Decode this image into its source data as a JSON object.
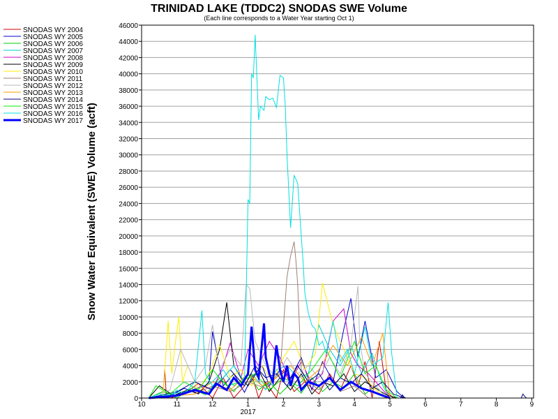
{
  "chart_data": {
    "type": "line",
    "title": "TRINIDAD LAKE (TDDC2) SNODAS SWE Volume",
    "subtitle": "(Each line corresponds to a Water Year starting Oct 1)",
    "xlabel": "",
    "ylabel": "Snow Water Equivalent (SWE) Volume (acft)",
    "ylim": [
      0,
      46000
    ],
    "xlim": [
      10,
      21.05
    ],
    "x_ticks": [
      "10",
      "11",
      "12",
      "1",
      "2",
      "3",
      "4",
      "5",
      "6",
      "7",
      "8",
      "9"
    ],
    "x_tick_positions": [
      10,
      11,
      12,
      13,
      14,
      15,
      16,
      17,
      18,
      19,
      20,
      21
    ],
    "x_year_label": "2017",
    "y_ticks": [
      0,
      2000,
      4000,
      6000,
      8000,
      10000,
      12000,
      14000,
      16000,
      18000,
      20000,
      22000,
      24000,
      26000,
      28000,
      30000,
      32000,
      34000,
      36000,
      38000,
      40000,
      42000,
      44000,
      46000
    ],
    "grid": true,
    "legend_position": "left",
    "series": [
      {
        "name": "SNODAS WY 2004",
        "color": "#cc0000",
        "width": 1,
        "x": [
          10.2,
          10.6,
          10.65,
          10.7,
          10.8,
          11.2,
          11.6,
          12.0,
          12.3,
          12.6,
          12.9,
          13.1,
          13.3,
          13.5,
          13.8,
          14.0,
          14.3,
          14.6,
          15.0,
          15.3,
          15.6,
          15.9,
          16.1,
          16.3,
          16.5,
          16.7,
          16.9,
          17.1
        ],
        "y": [
          0,
          0,
          3500,
          200,
          0,
          500,
          1800,
          0,
          2500,
          0,
          1500,
          3000,
          0,
          2000,
          0,
          3500,
          800,
          2000,
          500,
          3000,
          1000,
          4000,
          1500,
          4500,
          0,
          7000,
          800,
          0
        ]
      },
      {
        "name": "SNODAS WY 2005",
        "color": "#0000cc",
        "width": 1,
        "x": [
          10.2,
          10.7,
          11.2,
          11.6,
          11.9,
          12.0,
          12.3,
          12.6,
          12.9,
          13.1,
          13.4,
          13.6,
          13.9,
          14.2,
          14.5,
          14.8,
          15.1,
          15.4,
          15.7,
          15.9,
          16.1,
          16.3,
          16.6,
          16.9,
          17.2,
          17.4
        ],
        "y": [
          0,
          0,
          1200,
          600,
          2000,
          8200,
          1500,
          3000,
          700,
          2500,
          4000,
          1500,
          3500,
          2500,
          5000,
          1000,
          4500,
          2000,
          8500,
          12300,
          5000,
          9500,
          2500,
          3500,
          800,
          0
        ]
      },
      {
        "name": "SNODAS WY 2006",
        "color": "#00cc00",
        "width": 1,
        "x": [
          10.2,
          10.6,
          11.0,
          11.4,
          11.8,
          12.2,
          12.6,
          13.0,
          13.3,
          13.6,
          13.9,
          14.2,
          14.5,
          14.8,
          15.1,
          15.4,
          15.7,
          16.0,
          16.3,
          16.6,
          16.9
        ],
        "y": [
          0,
          800,
          0,
          1200,
          400,
          2500,
          800,
          3000,
          1000,
          2000,
          500,
          1800,
          600,
          2500,
          800,
          2000,
          1200,
          3000,
          500,
          1500,
          0
        ]
      },
      {
        "name": "SNODAS WY 2007",
        "color": "#00cccc",
        "width": 1,
        "x": [
          10.2,
          11.5,
          12.0,
          12.3,
          12.6,
          12.9,
          13.1,
          13.5,
          13.8,
          14.1,
          14.4,
          14.7,
          15.0,
          15.3,
          15.6,
          15.9,
          16.2,
          16.5,
          16.8,
          17.0
        ],
        "y": [
          0,
          1000,
          2000,
          3500,
          1500,
          2500,
          3000,
          1000,
          3500,
          4000,
          2500,
          3000,
          9000,
          6000,
          4000,
          6500,
          3000,
          5500,
          1500,
          0
        ]
      },
      {
        "name": "SNODAS WY 2008",
        "color": "#cc00cc",
        "width": 1,
        "x": [
          10.2,
          11.2,
          11.7,
          12.0,
          12.3,
          12.5,
          12.8,
          13.0,
          13.3,
          13.6,
          13.9,
          14.2,
          14.5,
          14.8,
          15.1,
          15.4,
          15.7,
          15.9,
          16.1,
          16.4,
          16.7,
          17.0
        ],
        "y": [
          0,
          500,
          1500,
          1000,
          4000,
          6800,
          2500,
          6000,
          4000,
          7000,
          5000,
          2000,
          4500,
          1800,
          3000,
          9500,
          11000,
          5500,
          4000,
          3000,
          1500,
          0
        ]
      },
      {
        "name": "SNODAS WY 2009",
        "color": "#000000",
        "width": 1,
        "x": [
          10.2,
          10.5,
          10.9,
          11.3,
          11.6,
          11.9,
          12.2,
          12.4,
          12.6,
          12.8,
          13.0,
          13.3,
          13.6,
          13.9,
          14.2,
          14.5,
          14.8,
          15.1,
          15.4,
          15.7,
          16.0,
          16.3,
          16.6,
          16.9,
          17.2
        ],
        "y": [
          0,
          1500,
          300,
          1000,
          500,
          2000,
          6000,
          11800,
          4000,
          2500,
          1500,
          3500,
          800,
          2500,
          1000,
          3000,
          500,
          2000,
          1500,
          3000,
          800,
          2000,
          1200,
          400,
          0
        ]
      },
      {
        "name": "SNODAS WY 2010",
        "color": "#ffee00",
        "width": 1,
        "x": [
          10.2,
          10.6,
          10.75,
          10.85,
          10.95,
          11.05,
          11.15,
          11.3,
          11.6,
          11.9,
          12.2,
          12.5,
          12.8,
          13.1,
          13.4,
          13.7,
          14.0,
          14.3,
          14.6,
          14.9,
          15.1,
          15.4,
          15.7,
          16.0,
          16.3,
          16.6,
          16.9
        ],
        "y": [
          0,
          0,
          9500,
          3000,
          6800,
          10000,
          2000,
          4000,
          1000,
          3000,
          6500,
          2500,
          3500,
          1500,
          4000,
          2000,
          5000,
          7000,
          3500,
          5500,
          14200,
          9000,
          6000,
          3000,
          2500,
          1000,
          0
        ]
      },
      {
        "name": "SNODAS WY 2011",
        "color": "#a08070",
        "width": 1,
        "x": [
          10.2,
          11.5,
          12.0,
          12.5,
          13.0,
          13.5,
          13.9,
          14.1,
          14.2,
          14.3,
          14.35,
          14.4,
          14.5,
          14.7,
          15.0,
          15.3,
          15.6,
          16.0,
          16.4
        ],
        "y": [
          0,
          500,
          1500,
          800,
          2000,
          1200,
          3000,
          15000,
          17500,
          19300,
          17000,
          14000,
          3500,
          2000,
          1000,
          2500,
          800,
          1500,
          0
        ]
      },
      {
        "name": "SNODAS WY 2012",
        "color": "#b8b8b8",
        "width": 1,
        "x": [
          10.2,
          10.8,
          11.1,
          11.5,
          11.8,
          12.0,
          12.2,
          12.5,
          12.8,
          12.95,
          13.05,
          13.2,
          13.5,
          13.8,
          14.1,
          14.4,
          14.7,
          15.0,
          15.3,
          15.6,
          15.9,
          16.1,
          16.15,
          16.3,
          16.6,
          16.9
        ],
        "y": [
          0,
          1000,
          6000,
          2000,
          4000,
          9000,
          3500,
          6000,
          4000,
          14000,
          13500,
          7000,
          4000,
          2500,
          5000,
          3000,
          4000,
          2500,
          5000,
          3000,
          6500,
          13800,
          7000,
          3000,
          1500,
          0
        ]
      },
      {
        "name": "SNODAS WY 2013",
        "color": "#ff9900",
        "width": 1,
        "x": [
          10.2,
          11.5,
          12.0,
          12.5,
          13.0,
          13.4,
          13.8,
          14.2,
          14.6,
          15.0,
          15.4,
          15.8,
          16.2,
          16.5,
          16.8,
          17.0
        ],
        "y": [
          0,
          500,
          2000,
          1000,
          3000,
          1500,
          2500,
          4000,
          2000,
          3500,
          6500,
          4000,
          7500,
          4000,
          8000,
          0
        ]
      },
      {
        "name": "SNODAS WY 2014",
        "color": "#000080",
        "width": 1,
        "x": [
          10.2,
          11.0,
          11.5,
          12.0,
          12.5,
          12.9,
          13.2,
          13.5,
          13.8,
          14.1,
          14.4,
          14.7,
          15.0,
          15.3,
          15.6,
          15.9,
          16.2,
          16.5,
          16.8,
          17.1,
          17.4
        ],
        "y": [
          0,
          800,
          2000,
          1000,
          3500,
          1500,
          4000,
          2500,
          3000,
          1500,
          4000,
          2000,
          3000,
          1000,
          2500,
          1800,
          3000,
          1200,
          2000,
          500,
          0
        ]
      },
      {
        "name": "SNODAS WY 2015",
        "color": "#00ee00",
        "width": 1,
        "x": [
          10.2,
          10.4,
          10.8,
          11.2,
          11.6,
          12.0,
          12.4,
          12.8,
          13.2,
          13.6,
          14.0,
          14.4,
          14.8,
          15.2,
          15.6,
          16.0,
          16.3,
          16.6,
          16.9,
          17.2
        ],
        "y": [
          0,
          1500,
          500,
          2000,
          1000,
          3500,
          1500,
          2000,
          3000,
          1000,
          2500,
          1500,
          3500,
          6000,
          2500,
          7000,
          3000,
          4000,
          1000,
          0
        ]
      },
      {
        "name": "SNODAS WY 2016",
        "color": "#00e0e0",
        "width": 1,
        "x": [
          10.2,
          10.5,
          10.8,
          11.0,
          11.2,
          11.5,
          11.7,
          11.8,
          12.0,
          12.3,
          12.6,
          12.9,
          13.0,
          13.05,
          13.1,
          13.15,
          13.2,
          13.3,
          13.35,
          13.45,
          13.5,
          13.6,
          13.7,
          13.8,
          13.9,
          14.0,
          14.05,
          14.1,
          14.2,
          14.3,
          14.4,
          14.5,
          14.55,
          14.6,
          14.7,
          14.8,
          14.9,
          15.0,
          15.1,
          15.2,
          15.4,
          15.6,
          15.8,
          16.0,
          16.3,
          16.5,
          16.8,
          16.95,
          17.05,
          17.2
        ],
        "y": [
          0,
          500,
          200,
          1000,
          500,
          2000,
          10800,
          3000,
          1500,
          2500,
          4000,
          2000,
          24500,
          24000,
          40000,
          39500,
          44800,
          34300,
          36000,
          35500,
          37200,
          36800,
          37000,
          35800,
          39800,
          39500,
          36000,
          30000,
          21000,
          27500,
          26500,
          20000,
          17000,
          13000,
          10500,
          9000,
          8500,
          6500,
          7000,
          5500,
          9500,
          4500,
          6000,
          3000,
          8800,
          4000,
          5000,
          11800,
          5500,
          0
        ]
      },
      {
        "name": "SNODAS WY 2017",
        "color": "#0000ff",
        "width": 3,
        "x": [
          10.2,
          11.0,
          11.5,
          11.9,
          12.1,
          12.4,
          12.6,
          12.8,
          13.0,
          13.1,
          13.2,
          13.3,
          13.45,
          13.5,
          13.6,
          13.7,
          13.8,
          13.9,
          14.0,
          14.1,
          14.2,
          14.3,
          14.4,
          14.5,
          14.7,
          15.0,
          15.3,
          15.6,
          15.9,
          16.2,
          16.5,
          16.8,
          17.0
        ],
        "y": [
          0,
          300,
          1000,
          500,
          1800,
          1000,
          2500,
          1500,
          3000,
          8800,
          3500,
          2500,
          9200,
          5000,
          3000,
          2000,
          6500,
          3500,
          2000,
          4000,
          1500,
          3000,
          2500,
          1000,
          2000,
          1500,
          2500,
          1000,
          2000,
          1200,
          800,
          300,
          0
        ]
      },
      {
        "name": "",
        "color": "#000080",
        "width": 1,
        "legend": false,
        "x": [
          17.3,
          17.35,
          17.4,
          17.45,
          20.7,
          20.75,
          20.8,
          20.85
        ],
        "y": [
          0,
          400,
          100,
          0,
          0,
          500,
          200,
          0
        ]
      }
    ]
  }
}
